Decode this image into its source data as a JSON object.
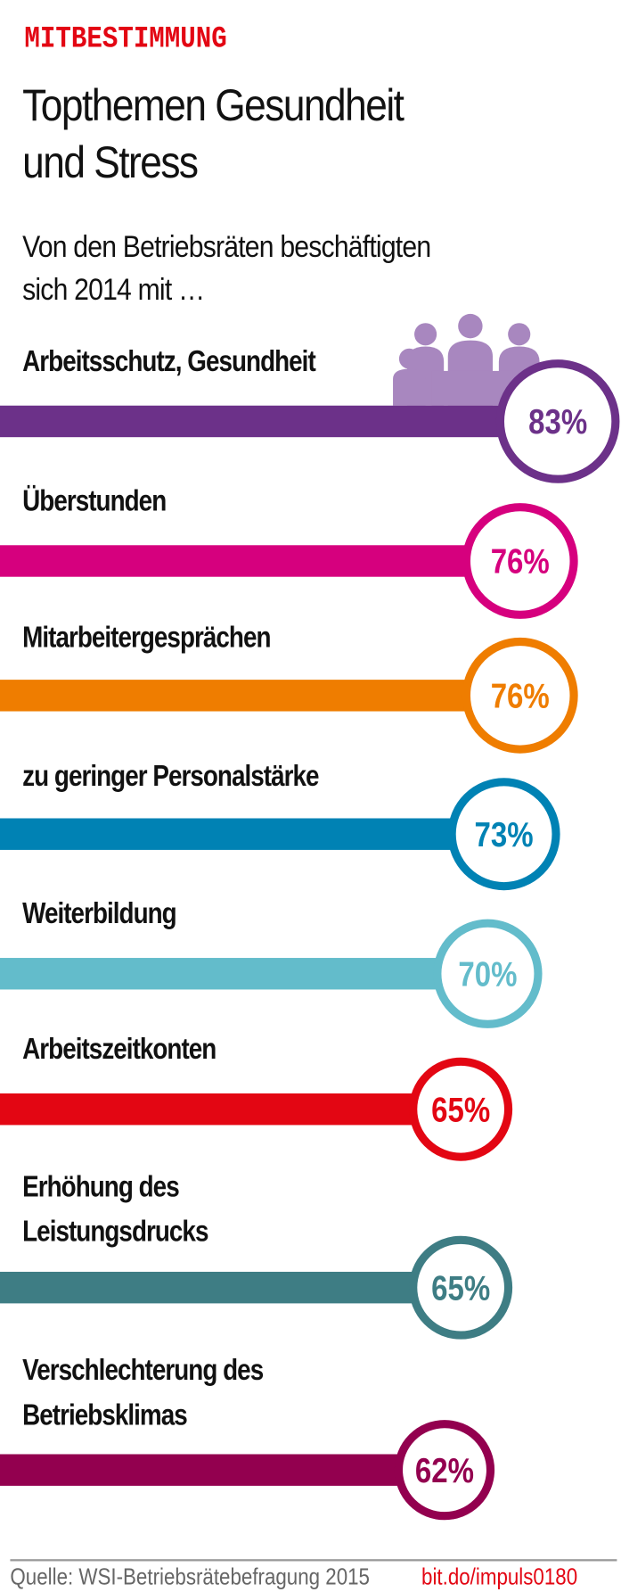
{
  "kicker": "MITBESTIMMUNG",
  "title_lines": [
    "Topthemen Gesundheit",
    "und Stress"
  ],
  "subtitle_lines": [
    "Von den Betriebsräten beschäftigten",
    "sich 2014 mit …"
  ],
  "icon": "people-group-icon",
  "icon_color": "#a887bf",
  "chart_data": {
    "type": "bar",
    "orientation": "horizontal",
    "unit": "%",
    "categories": [
      [
        "Arbeitsschutz, Gesundheit"
      ],
      [
        "Überstunden"
      ],
      [
        "Mitarbeitergesprächen"
      ],
      [
        "zu geringer Personalstärke"
      ],
      [
        "Weiterbildung"
      ],
      [
        "Arbeitszeitkonten"
      ],
      [
        "Erhöhung des",
        "Leistungsdrucks"
      ],
      [
        "Verschlechterung des",
        "Betriebsklimas"
      ]
    ],
    "values": [
      83,
      76,
      76,
      73,
      70,
      65,
      65,
      62
    ],
    "value_labels": [
      "83%",
      "76%",
      "76%",
      "73%",
      "70%",
      "65%",
      "65%",
      "62%"
    ],
    "colors": [
      "#6c3189",
      "#d6007e",
      "#ef7d00",
      "#0082b4",
      "#63bccb",
      "#e30613",
      "#3e7d84",
      "#93004f"
    ]
  },
  "footer": {
    "source": "Quelle: WSI-Betriebsrätebefragung 2015",
    "link": "bit.do/impuls0180"
  }
}
